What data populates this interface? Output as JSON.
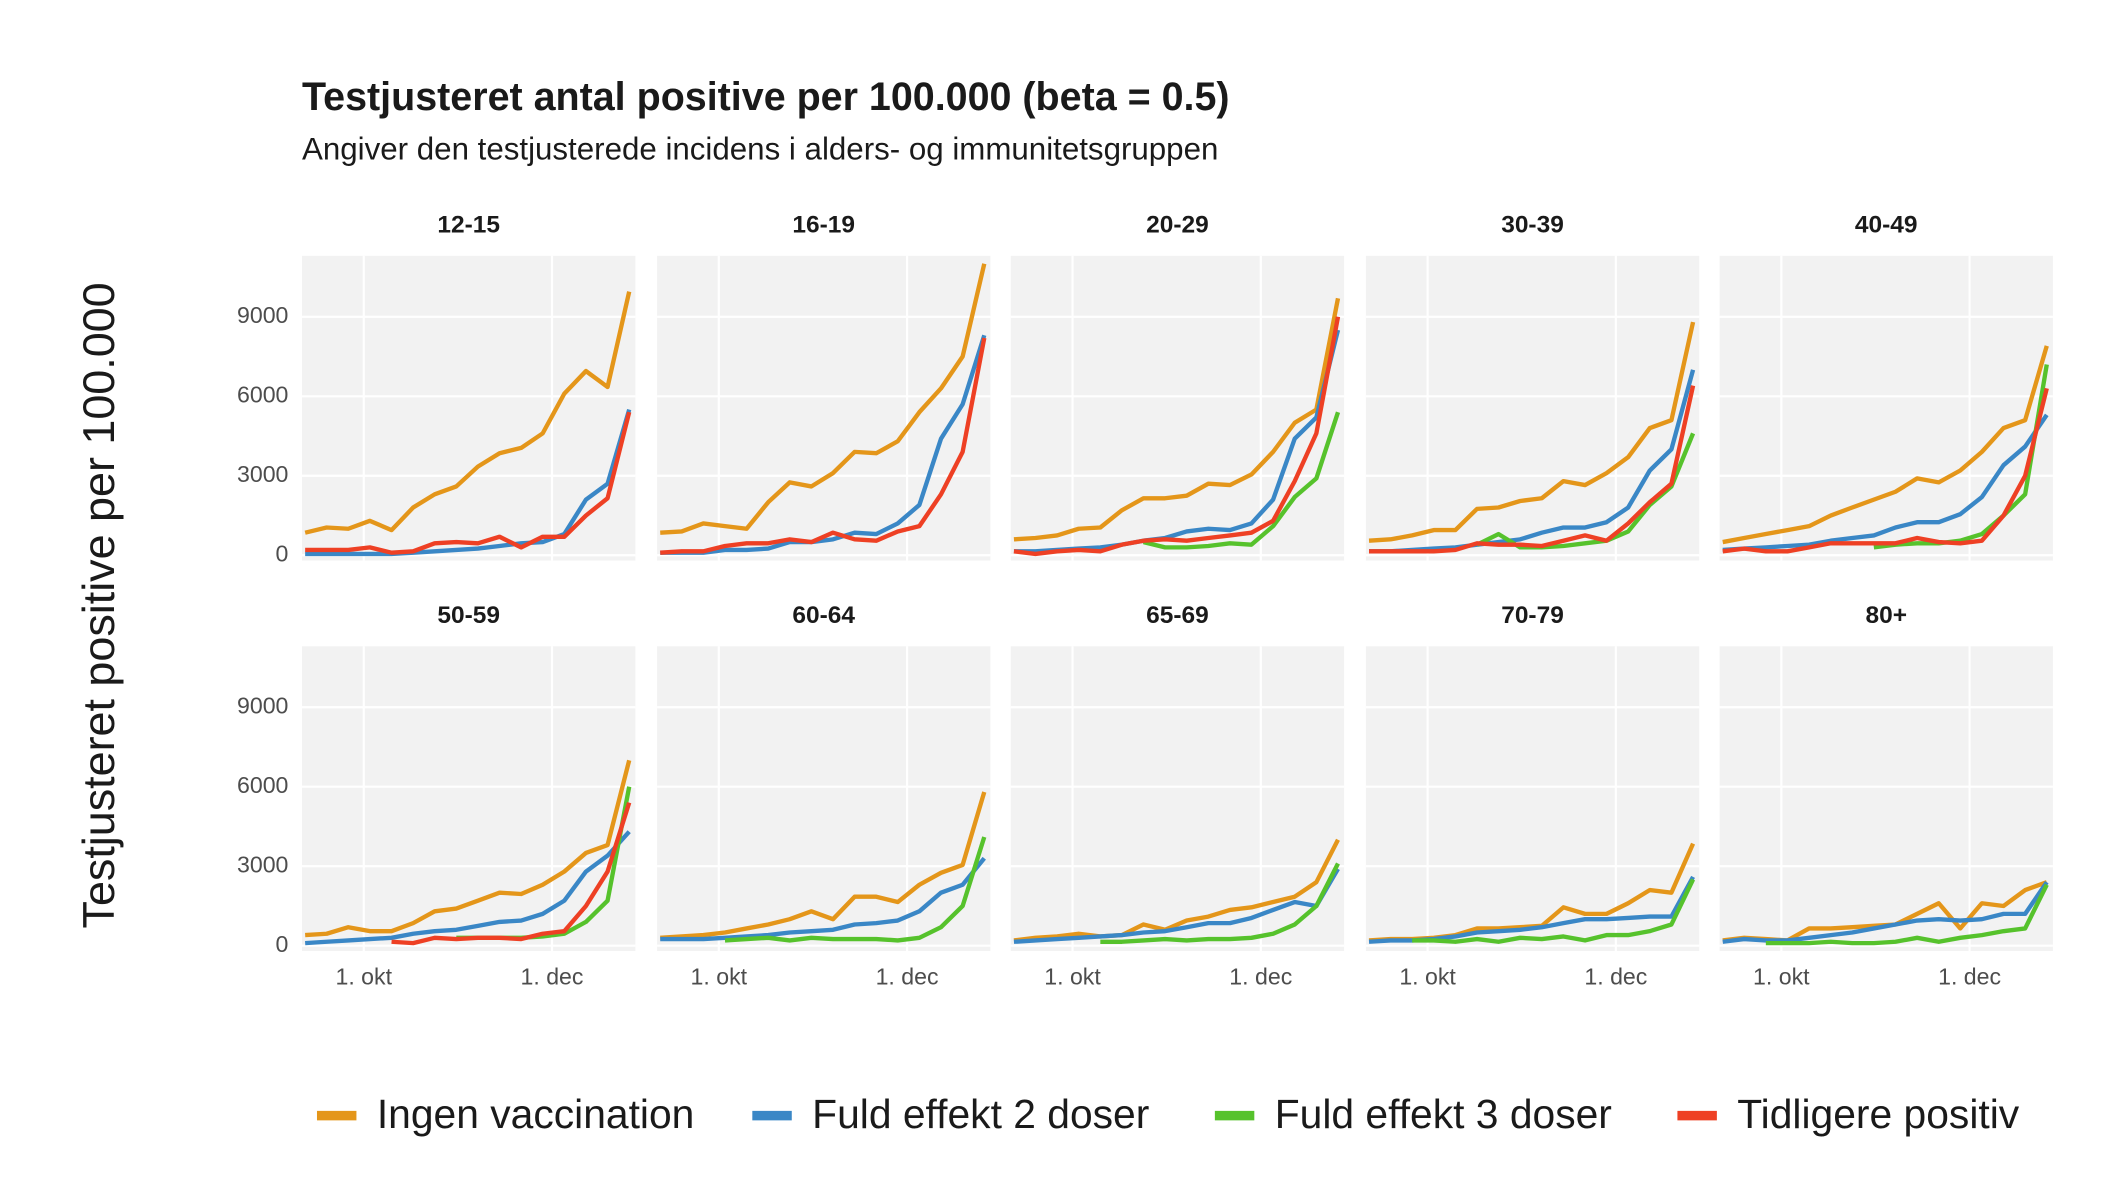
{
  "chart_data": {
    "type": "line",
    "title": "Testjusteret antal positive per 100.000 (beta = 0.5)",
    "subtitle": "Angiver den testjusterede incidens i alders- og immunitetsgruppen",
    "ylabel": "Testjusteret positive per 100.000",
    "x": [
      -19,
      -12,
      -5,
      2,
      9,
      16,
      23,
      30,
      37,
      44,
      51,
      58,
      65,
      72,
      79,
      86
    ],
    "xlim": [
      -20,
      88
    ],
    "xticks": [
      {
        "value": 0,
        "label": "1. okt"
      },
      {
        "value": 61,
        "label": "1. dec"
      }
    ],
    "ylim": [
      -200,
      11300
    ],
    "yticks": [
      0,
      3000,
      6000,
      9000
    ],
    "grid": true,
    "series": [
      {
        "name": "Ingen vaccination",
        "color": "#e4961a"
      },
      {
        "name": "Fuld effekt 2 doser",
        "color": "#3a87c6"
      },
      {
        "name": "Fuld effekt 3 doser",
        "color": "#56c22c"
      },
      {
        "name": "Tidligere positiv",
        "color": "#ee4024"
      }
    ],
    "panels": [
      {
        "title": "12-15",
        "values": [
          [
            850,
            1050,
            1000,
            1300,
            950,
            1800,
            2300,
            2600,
            3350,
            3850,
            4050,
            4600,
            6100,
            6950,
            6350,
            9950
          ],
          [
            50,
            50,
            50,
            50,
            50,
            100,
            150,
            200,
            250,
            350,
            450,
            500,
            800,
            2100,
            2700,
            5500
          ],
          [
            null,
            null,
            null,
            null,
            null,
            null,
            null,
            null,
            null,
            null,
            null,
            null,
            null,
            null,
            null,
            null
          ],
          [
            200,
            200,
            200,
            300,
            100,
            150,
            450,
            500,
            450,
            700,
            300,
            700,
            700,
            1500,
            2150,
            5400
          ]
        ]
      },
      {
        "title": "16-19",
        "values": [
          [
            850,
            900,
            1200,
            1100,
            1000,
            2000,
            2750,
            2600,
            3100,
            3900,
            3850,
            4300,
            5400,
            6300,
            7500,
            11000
          ],
          [
            100,
            100,
            100,
            200,
            200,
            250,
            500,
            500,
            600,
            850,
            800,
            1200,
            1900,
            4400,
            5700,
            8300
          ],
          [
            null,
            null,
            null,
            null,
            null,
            null,
            null,
            null,
            null,
            null,
            null,
            null,
            null,
            null,
            null,
            null
          ],
          [
            100,
            150,
            150,
            350,
            450,
            450,
            600,
            500,
            850,
            600,
            550,
            900,
            1100,
            2300,
            3900,
            8200
          ]
        ]
      },
      {
        "title": "20-29",
        "values": [
          [
            600,
            650,
            750,
            1000,
            1050,
            1700,
            2150,
            2150,
            2250,
            2700,
            2650,
            3050,
            3900,
            5000,
            5500,
            9700
          ],
          [
            150,
            150,
            200,
            250,
            300,
            400,
            550,
            650,
            900,
            1000,
            950,
            1200,
            2100,
            4400,
            5200,
            8500
          ],
          [
            null,
            null,
            null,
            null,
            null,
            null,
            500,
            300,
            300,
            350,
            450,
            400,
            1100,
            2200,
            2900,
            5400
          ],
          [
            150,
            50,
            150,
            200,
            150,
            400,
            550,
            600,
            550,
            650,
            750,
            850,
            1300,
            2800,
            4600,
            9000
          ]
        ]
      },
      {
        "title": "30-39",
        "values": [
          [
            550,
            600,
            750,
            950,
            950,
            1750,
            1800,
            2050,
            2150,
            2800,
            2650,
            3100,
            3700,
            4800,
            5100,
            8800
          ],
          [
            150,
            150,
            200,
            250,
            300,
            400,
            500,
            600,
            850,
            1050,
            1050,
            1250,
            1800,
            3200,
            4000,
            7000
          ],
          [
            null,
            null,
            null,
            null,
            null,
            400,
            800,
            300,
            300,
            350,
            450,
            550,
            900,
            1900,
            2600,
            4600
          ],
          [
            150,
            150,
            150,
            150,
            200,
            450,
            400,
            400,
            350,
            550,
            750,
            550,
            1200,
            2000,
            2700,
            6400
          ]
        ]
      },
      {
        "title": "40-49",
        "values": [
          [
            500,
            650,
            800,
            950,
            1100,
            1500,
            1800,
            2100,
            2400,
            2900,
            2750,
            3200,
            3900,
            4800,
            5100,
            7900
          ],
          [
            200,
            250,
            300,
            350,
            400,
            550,
            650,
            750,
            1050,
            1250,
            1250,
            1550,
            2200,
            3400,
            4100,
            5300
          ],
          [
            null,
            null,
            null,
            null,
            null,
            null,
            null,
            300,
            400,
            450,
            450,
            550,
            800,
            1500,
            2300,
            7200
          ],
          [
            150,
            250,
            150,
            150,
            300,
            450,
            450,
            450,
            450,
            650,
            500,
            450,
            550,
            1500,
            3000,
            6300
          ]
        ]
      },
      {
        "title": "50-59",
        "values": [
          [
            400,
            450,
            700,
            550,
            550,
            850,
            1300,
            1400,
            1700,
            2000,
            1950,
            2300,
            2800,
            3500,
            3800,
            7000
          ],
          [
            100,
            150,
            200,
            250,
            300,
            450,
            550,
            600,
            750,
            900,
            950,
            1200,
            1700,
            2800,
            3400,
            4300
          ],
          [
            null,
            null,
            null,
            null,
            null,
            null,
            null,
            300,
            300,
            300,
            300,
            350,
            450,
            900,
            1700,
            6000
          ],
          [
            null,
            null,
            null,
            null,
            150,
            100,
            300,
            250,
            300,
            300,
            250,
            450,
            550,
            1500,
            2800,
            5400
          ]
        ]
      },
      {
        "title": "60-64",
        "values": [
          [
            300,
            350,
            400,
            500,
            650,
            800,
            1000,
            1300,
            1000,
            1850,
            1850,
            1650,
            2300,
            2750,
            3050,
            5800
          ],
          [
            250,
            250,
            250,
            300,
            350,
            400,
            500,
            550,
            600,
            800,
            850,
            950,
            1300,
            2000,
            2300,
            3300
          ],
          [
            null,
            null,
            null,
            200,
            250,
            300,
            200,
            300,
            250,
            250,
            250,
            200,
            300,
            700,
            1500,
            4100
          ],
          [
            null,
            null,
            null,
            null,
            null,
            null,
            null,
            null,
            null,
            null,
            null,
            null,
            null,
            null,
            null,
            null
          ]
        ]
      },
      {
        "title": "65-69",
        "values": [
          [
            200,
            300,
            350,
            450,
            350,
            400,
            800,
            600,
            950,
            1100,
            1350,
            1450,
            1650,
            1850,
            2400,
            4000
          ],
          [
            150,
            200,
            250,
            300,
            350,
            400,
            500,
            550,
            700,
            850,
            850,
            1050,
            1350,
            1650,
            1500,
            2900
          ],
          [
            null,
            null,
            null,
            null,
            150,
            150,
            200,
            250,
            200,
            250,
            250,
            300,
            450,
            800,
            1500,
            3100
          ],
          [
            null,
            null,
            null,
            null,
            null,
            null,
            null,
            null,
            null,
            null,
            null,
            null,
            null,
            null,
            null,
            null
          ]
        ]
      },
      {
        "title": "70-79",
        "values": [
          [
            200,
            250,
            250,
            300,
            400,
            650,
            650,
            700,
            750,
            1450,
            1200,
            1200,
            1600,
            2100,
            2000,
            3850
          ],
          [
            150,
            200,
            200,
            250,
            350,
            500,
            550,
            600,
            700,
            850,
            1000,
            1000,
            1050,
            1100,
            1100,
            2600
          ],
          [
            null,
            null,
            200,
            200,
            150,
            250,
            150,
            300,
            250,
            350,
            200,
            400,
            400,
            550,
            800,
            2500
          ],
          [
            null,
            null,
            null,
            null,
            null,
            null,
            null,
            null,
            null,
            null,
            null,
            null,
            null,
            null,
            null,
            null
          ]
        ]
      },
      {
        "title": "80+",
        "values": [
          [
            200,
            300,
            250,
            200,
            650,
            650,
            700,
            750,
            800,
            1200,
            1600,
            650,
            1600,
            1500,
            2100,
            2400
          ],
          [
            150,
            250,
            200,
            200,
            300,
            400,
            500,
            650,
            800,
            950,
            1000,
            950,
            1000,
            1200,
            1200,
            2400
          ],
          [
            null,
            null,
            100,
            100,
            100,
            150,
            100,
            100,
            150,
            300,
            150,
            300,
            400,
            550,
            650,
            2300
          ],
          [
            null,
            null,
            null,
            null,
            null,
            null,
            null,
            null,
            null,
            null,
            null,
            null,
            null,
            null,
            null,
            null
          ]
        ]
      }
    ]
  }
}
